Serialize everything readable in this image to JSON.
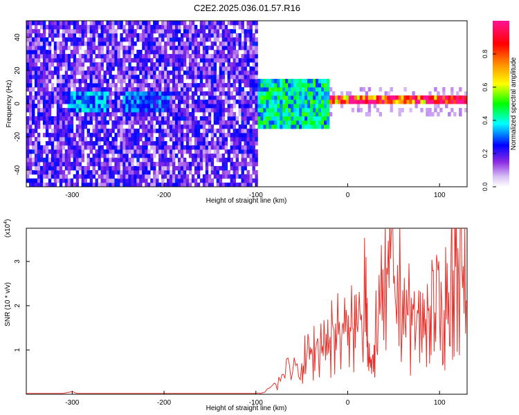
{
  "figure_title": "C2E2.2025.036.01.57.R16",
  "chart_data": [
    {
      "type": "heatmap",
      "title": "",
      "xlabel": "Height of straight line (km)",
      "ylabel": "Frequency (Hz)",
      "xlim": [
        -350,
        130
      ],
      "ylim": [
        -50,
        50
      ],
      "x_ticks": [
        -300,
        -200,
        -100,
        0,
        100
      ],
      "y_ticks": [
        -40,
        -20,
        0,
        20,
        40
      ],
      "colorbar": {
        "label": "Normalized spectral amplitude",
        "range": [
          0,
          1
        ],
        "ticks": [
          0.0,
          0.2,
          0.4,
          0.6,
          0.8
        ],
        "tick_labels": [
          "0.0",
          "0.2",
          "0.4",
          "0.6",
          "0.8"
        ],
        "colors": [
          "#ffffff",
          "#8a2be2",
          "#0000ff",
          "#00ffff",
          "#00ff00",
          "#ffff00",
          "#ff8c00",
          "#ff0000",
          "#ff1493"
        ]
      },
      "features": [
        {
          "x_range": [
            -350,
            -100
          ],
          "y_range": [
            -50,
            50
          ],
          "level": 0.15,
          "pattern": "noise"
        },
        {
          "x_range": [
            -305,
            -260
          ],
          "y_range": [
            -6,
            6
          ],
          "level": 0.35
        },
        {
          "x_range": [
            -245,
            -195
          ],
          "y_range": [
            -6,
            6
          ],
          "level": 0.3
        },
        {
          "x_range": [
            -100,
            -20
          ],
          "y_range": [
            -15,
            15
          ],
          "level": 0.45,
          "note": "transition"
        },
        {
          "x_range": [
            -20,
            130
          ],
          "y_range": [
            0,
            3
          ],
          "level": 0.95,
          "note": "narrow carrier line near 2 Hz"
        }
      ]
    },
    {
      "type": "line",
      "title": "",
      "xlabel": "Height of straight line (km)",
      "ylabel": "SNR (10 * v/v)",
      "y_multiplier": "(x10",
      "y_multiplier_exp": "4",
      "xlim": [
        -350,
        130
      ],
      "ylim": [
        0,
        3.75
      ],
      "x_ticks": [
        -300,
        -200,
        -100,
        0,
        100
      ],
      "y_ticks": [
        1,
        2,
        3
      ],
      "color": "#e8312a",
      "series": [
        {
          "name": "",
          "x": [
            -350,
            -310,
            -300,
            -295,
            -200,
            -100,
            -90,
            -80,
            -70,
            -60,
            -50,
            -45,
            -40,
            -35,
            -30,
            -25,
            -20,
            -15,
            -10,
            -5,
            0,
            5,
            10,
            15,
            20,
            22,
            25,
            28,
            30,
            35,
            40,
            45,
            50,
            55,
            60,
            65,
            70,
            75,
            80,
            85,
            90,
            95,
            100,
            105,
            110,
            115,
            120,
            125,
            130
          ],
          "y": [
            0.02,
            0.02,
            0.06,
            0.02,
            0.02,
            0.02,
            0.05,
            0.25,
            0.45,
            0.5,
            0.7,
            0.8,
            0.9,
            1.0,
            1.1,
            1.3,
            1.15,
            1.45,
            1.35,
            1.6,
            1.1,
            1.5,
            1.55,
            1.8,
            3.1,
            1.2,
            0.6,
            0.5,
            1.4,
            1.8,
            2.2,
            2.4,
            2.5,
            2.2,
            2.35,
            1.8,
            1.55,
            1.65,
            1.5,
            1.7,
            2.0,
            1.85,
            1.7,
            1.9,
            2.3,
            2.8,
            3.3,
            2.4,
            2.0
          ]
        }
      ]
    }
  ]
}
